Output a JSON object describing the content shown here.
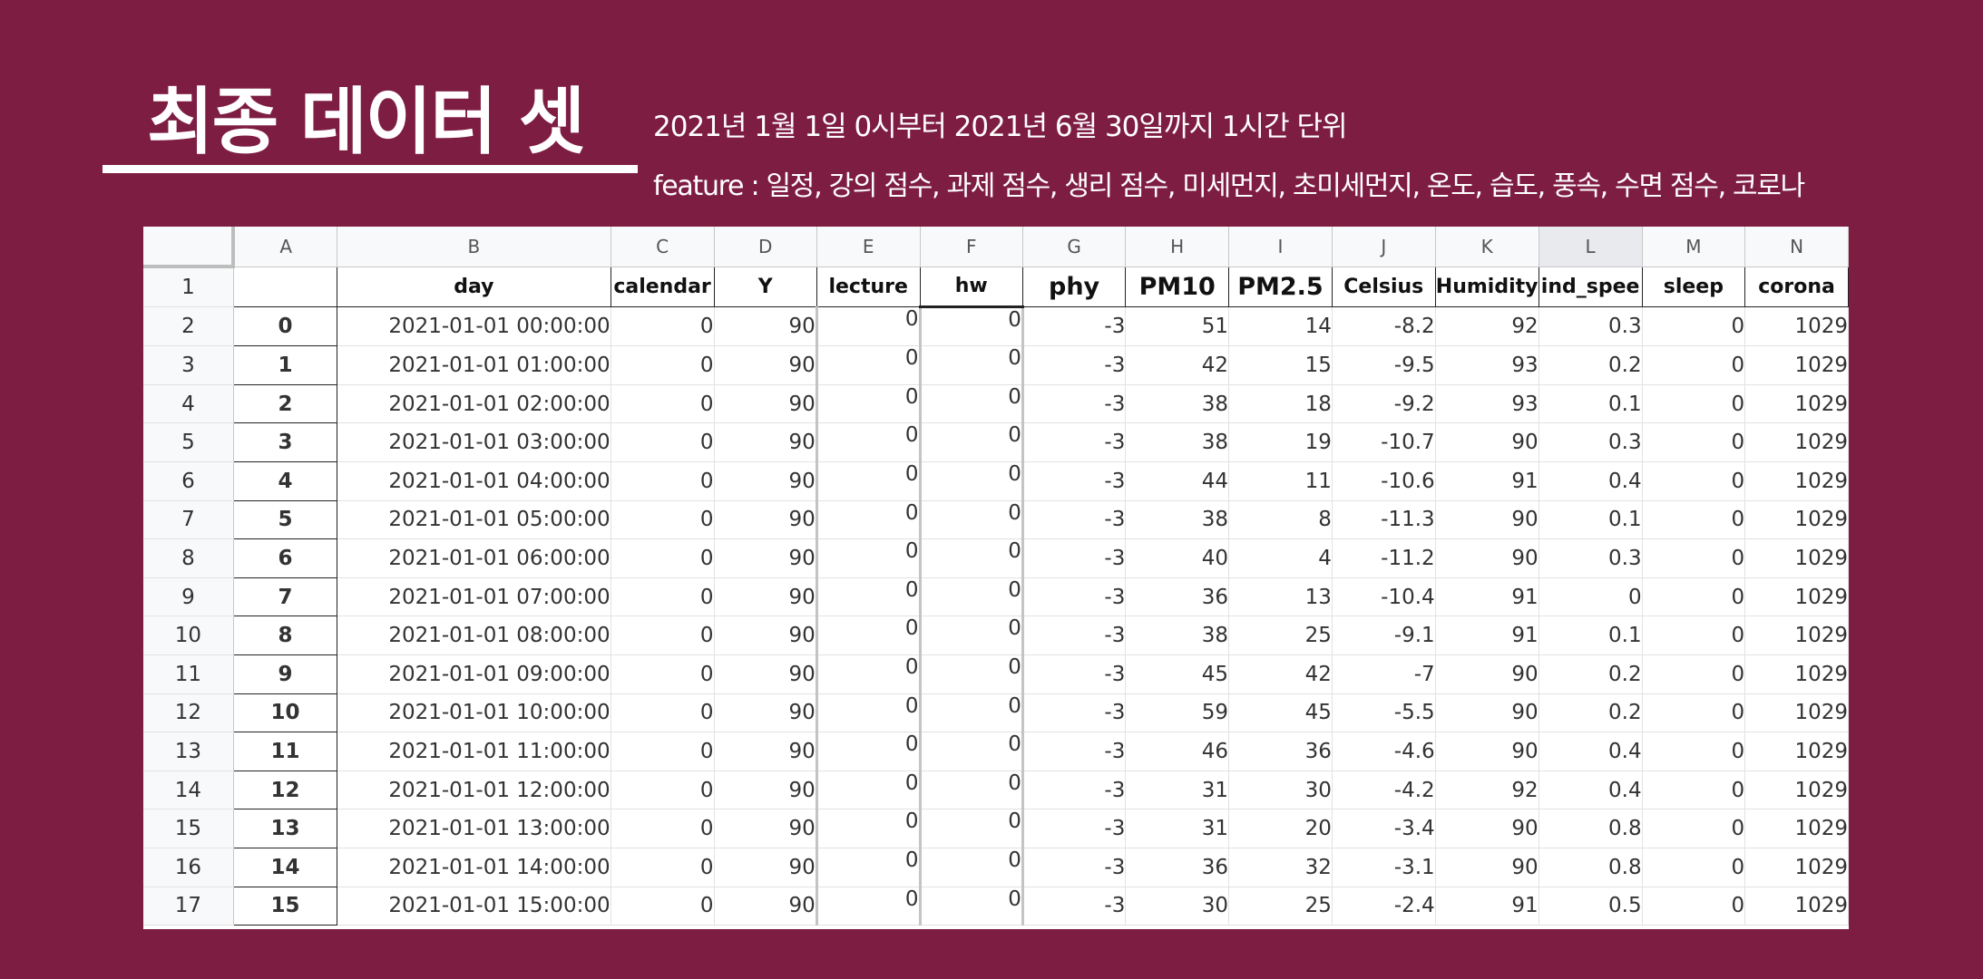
{
  "title": "최종 데이터 셋",
  "subtitle_1": "2021년 1월 1일 0시부터 2021년 6월 30일까지 1시간 단위",
  "subtitle_2": "feature : 일정, 강의 점수, 과제 점수, 생리 점수, 미세먼지, 초미세먼지, 온도, 습도, 풍속, 수면 점수, 코로나",
  "sheet": {
    "column_letters": [
      "A",
      "B",
      "C",
      "D",
      "E",
      "F",
      "G",
      "H",
      "I",
      "J",
      "K",
      "L",
      "M",
      "N"
    ],
    "selected_column": "L",
    "header_row_number": "1",
    "headers": [
      "",
      "day",
      "calendar",
      "Y",
      "lecture",
      "hw",
      "phy",
      "PM10",
      "PM2.5",
      "Celsius",
      "Humidity",
      "ind_spee",
      "sleep",
      "corona"
    ],
    "rows": [
      {
        "n": "2",
        "cells": [
          "0",
          "2021-01-01 00:00:00",
          "0",
          "90",
          "0",
          "0",
          "-3",
          "51",
          "14",
          "-8.2",
          "92",
          "0.3",
          "0",
          "1029"
        ]
      },
      {
        "n": "3",
        "cells": [
          "1",
          "2021-01-01 01:00:00",
          "0",
          "90",
          "0",
          "0",
          "-3",
          "42",
          "15",
          "-9.5",
          "93",
          "0.2",
          "0",
          "1029"
        ]
      },
      {
        "n": "4",
        "cells": [
          "2",
          "2021-01-01 02:00:00",
          "0",
          "90",
          "0",
          "0",
          "-3",
          "38",
          "18",
          "-9.2",
          "93",
          "0.1",
          "0",
          "1029"
        ]
      },
      {
        "n": "5",
        "cells": [
          "3",
          "2021-01-01 03:00:00",
          "0",
          "90",
          "0",
          "0",
          "-3",
          "38",
          "19",
          "-10.7",
          "90",
          "0.3",
          "0",
          "1029"
        ]
      },
      {
        "n": "6",
        "cells": [
          "4",
          "2021-01-01 04:00:00",
          "0",
          "90",
          "0",
          "0",
          "-3",
          "44",
          "11",
          "-10.6",
          "91",
          "0.4",
          "0",
          "1029"
        ]
      },
      {
        "n": "7",
        "cells": [
          "5",
          "2021-01-01 05:00:00",
          "0",
          "90",
          "0",
          "0",
          "-3",
          "38",
          "8",
          "-11.3",
          "90",
          "0.1",
          "0",
          "1029"
        ]
      },
      {
        "n": "8",
        "cells": [
          "6",
          "2021-01-01 06:00:00",
          "0",
          "90",
          "0",
          "0",
          "-3",
          "40",
          "4",
          "-11.2",
          "90",
          "0.3",
          "0",
          "1029"
        ]
      },
      {
        "n": "9",
        "cells": [
          "7",
          "2021-01-01 07:00:00",
          "0",
          "90",
          "0",
          "0",
          "-3",
          "36",
          "13",
          "-10.4",
          "91",
          "0",
          "0",
          "1029"
        ]
      },
      {
        "n": "10",
        "cells": [
          "8",
          "2021-01-01 08:00:00",
          "0",
          "90",
          "0",
          "0",
          "-3",
          "38",
          "25",
          "-9.1",
          "91",
          "0.1",
          "0",
          "1029"
        ]
      },
      {
        "n": "11",
        "cells": [
          "9",
          "2021-01-01 09:00:00",
          "0",
          "90",
          "0",
          "0",
          "-3",
          "45",
          "42",
          "-7",
          "90",
          "0.2",
          "0",
          "1029"
        ]
      },
      {
        "n": "12",
        "cells": [
          "10",
          "2021-01-01 10:00:00",
          "0",
          "90",
          "0",
          "0",
          "-3",
          "59",
          "45",
          "-5.5",
          "90",
          "0.2",
          "0",
          "1029"
        ]
      },
      {
        "n": "13",
        "cells": [
          "11",
          "2021-01-01 11:00:00",
          "0",
          "90",
          "0",
          "0",
          "-3",
          "46",
          "36",
          "-4.6",
          "90",
          "0.4",
          "0",
          "1029"
        ]
      },
      {
        "n": "14",
        "cells": [
          "12",
          "2021-01-01 12:00:00",
          "0",
          "90",
          "0",
          "0",
          "-3",
          "31",
          "30",
          "-4.2",
          "92",
          "0.4",
          "0",
          "1029"
        ]
      },
      {
        "n": "15",
        "cells": [
          "13",
          "2021-01-01 13:00:00",
          "0",
          "90",
          "0",
          "0",
          "-3",
          "31",
          "20",
          "-3.4",
          "90",
          "0.8",
          "0",
          "1029"
        ]
      },
      {
        "n": "16",
        "cells": [
          "14",
          "2021-01-01 14:00:00",
          "0",
          "90",
          "0",
          "0",
          "-3",
          "36",
          "32",
          "-3.1",
          "90",
          "0.8",
          "0",
          "1029"
        ]
      },
      {
        "n": "17",
        "cells": [
          "15",
          "2021-01-01 15:00:00",
          "0",
          "90",
          "0",
          "0",
          "-3",
          "30",
          "25",
          "-2.4",
          "91",
          "0.5",
          "0",
          "1029"
        ]
      }
    ]
  }
}
